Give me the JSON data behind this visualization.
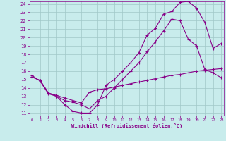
{
  "xlabel": "Windchill (Refroidissement éolien,°C)",
  "ylabel": "",
  "bg_color": "#c8ecec",
  "grid_color": "#a0c8c8",
  "line_color": "#880088",
  "xmin": 0,
  "xmax": 23,
  "ymin": 11,
  "ymax": 24,
  "xticks": [
    0,
    1,
    2,
    3,
    4,
    5,
    6,
    7,
    8,
    9,
    10,
    11,
    12,
    13,
    14,
    15,
    16,
    17,
    18,
    19,
    20,
    21,
    22,
    23
  ],
  "yticks": [
    11,
    12,
    13,
    14,
    15,
    16,
    17,
    18,
    19,
    20,
    21,
    22,
    23,
    24
  ],
  "line1_x": [
    0,
    1,
    2,
    3,
    4,
    5,
    6,
    7,
    8,
    9,
    10,
    11,
    12,
    13,
    14,
    15,
    16,
    17,
    18,
    19,
    20,
    21,
    22,
    23
  ],
  "line1_y": [
    15.5,
    14.8,
    13.3,
    13.0,
    12.0,
    11.2,
    11.0,
    11.0,
    12.0,
    14.3,
    15.0,
    16.0,
    17.0,
    18.2,
    20.3,
    21.1,
    22.8,
    23.1,
    24.2,
    24.3,
    23.5,
    21.8,
    18.7,
    19.3
  ],
  "line2_x": [
    0,
    1,
    2,
    3,
    4,
    5,
    6,
    7,
    8,
    9,
    10,
    11,
    12,
    13,
    14,
    15,
    16,
    17,
    18,
    19,
    20,
    21,
    22,
    23
  ],
  "line2_y": [
    15.3,
    14.9,
    13.4,
    13.1,
    12.8,
    12.5,
    12.2,
    13.5,
    13.8,
    13.9,
    14.1,
    14.3,
    14.5,
    14.7,
    14.9,
    15.1,
    15.3,
    15.5,
    15.6,
    15.8,
    16.0,
    16.1,
    16.2,
    16.3
  ],
  "line3_x": [
    0,
    1,
    2,
    3,
    4,
    5,
    6,
    7,
    8,
    9,
    10,
    11,
    12,
    13,
    14,
    15,
    16,
    17,
    18,
    19,
    20,
    21,
    22,
    23
  ],
  "line3_y": [
    15.3,
    14.9,
    13.4,
    13.0,
    12.5,
    12.3,
    12.0,
    11.5,
    12.5,
    13.0,
    14.0,
    15.0,
    16.0,
    17.0,
    18.3,
    19.5,
    20.8,
    22.2,
    22.0,
    19.8,
    19.0,
    16.2,
    15.8,
    15.2
  ]
}
